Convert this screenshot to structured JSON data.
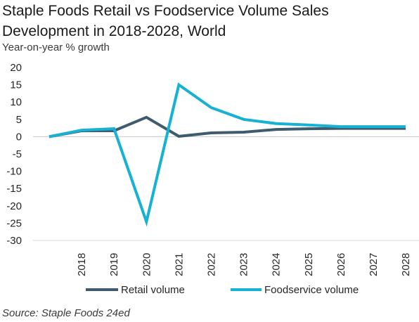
{
  "title_line1": "Staple Foods Retail vs Foodservice Volume Sales",
  "title_line2": "Development in 2018-2028, World",
  "source": "Source: Staple Foods 24ed",
  "chart_data": {
    "type": "line",
    "title": "Staple Foods Retail vs Foodservice Volume Sales Development in 2018-2028, World",
    "ylabel": "Year-on-year % growth",
    "xlabel": "",
    "x": [
      "",
      "2018",
      "2019",
      "2020",
      "2021",
      "2022",
      "2023",
      "2024",
      "2025",
      "2026",
      "2027",
      "2028"
    ],
    "ylim": [
      -30,
      20
    ],
    "yticks": [
      20,
      15,
      10,
      5,
      0,
      -5,
      -10,
      -15,
      -20,
      -25,
      -30
    ],
    "grid": false,
    "legend_position": "bottom",
    "series": [
      {
        "name": "Retail volume",
        "color": "#3e5c6e",
        "values": [
          0,
          1.7,
          1.7,
          5.6,
          0.1,
          1.1,
          1.3,
          2.1,
          2.3,
          2.4,
          2.4,
          2.4
        ]
      },
      {
        "name": "Foodservice volume",
        "color": "#17b1d4",
        "values": [
          0,
          1.9,
          2.3,
          -24.6,
          15.0,
          8.4,
          5.0,
          3.8,
          3.4,
          2.9,
          2.9,
          2.9
        ]
      }
    ]
  }
}
